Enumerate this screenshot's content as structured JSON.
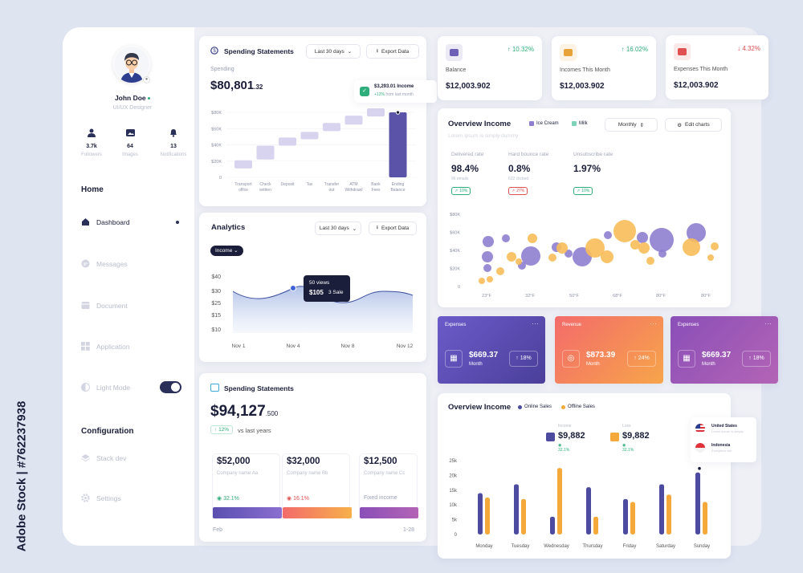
{
  "profile": {
    "name": "John Doe",
    "role": "UI/UX Designer",
    "stats": [
      {
        "value": "3.7k",
        "label": "Followers"
      },
      {
        "value": "64",
        "label": "Images"
      },
      {
        "value": "13",
        "label": "Notifications"
      }
    ]
  },
  "sidebar": {
    "home_heading": "Home",
    "items": [
      {
        "label": "Dashboard"
      },
      {
        "label": "Messages"
      },
      {
        "label": "Document"
      },
      {
        "label": "Application"
      },
      {
        "label": "Light Mode"
      }
    ],
    "config_heading": "Configuration",
    "config_items": [
      {
        "label": "Stack dev"
      },
      {
        "label": "Settings"
      }
    ]
  },
  "spending_top": {
    "title": "Spending Statements",
    "range": "Last 30 days",
    "export": "Export Data",
    "label": "Spending",
    "amount": "$80,801",
    "cents": ".32",
    "tooltip_amount": "$3,293.01 Income",
    "tooltip_change": "+12%",
    "tooltip_note": "from last month",
    "chart_data": {
      "type": "waterfall",
      "categories": [
        "Transport office",
        "Check written",
        "Deposit",
        "Tax",
        "Transfer out",
        "ATM Withdrawl",
        "Bank Fees",
        "Ending Balance"
      ],
      "y_ticks": [
        "$80K",
        "$60K",
        "$40K",
        "$20K",
        "0"
      ],
      "ranges": [
        [
          11,
          21
        ],
        [
          22,
          39
        ],
        [
          39,
          49
        ],
        [
          47,
          56
        ],
        [
          57,
          67
        ],
        [
          65,
          76
        ],
        [
          75,
          85
        ],
        [
          0,
          80
        ]
      ],
      "ylim": [
        0,
        85
      ]
    }
  },
  "stats_cards": [
    {
      "label": "Balance",
      "value": "$12,003.902",
      "change": "10.32%",
      "direction": "up",
      "color": "#6c5fb5"
    },
    {
      "label": "Incomes This Month",
      "value": "$12,003.902",
      "change": "16.02%",
      "direction": "up",
      "color": "#e8a23a"
    },
    {
      "label": "Expenses This Month",
      "value": "$12,003.902",
      "change": "4.32%",
      "direction": "down",
      "color": "#e05050"
    }
  ],
  "overview_income_bubble": {
    "title": "Overview Income",
    "subtitle": "Lorem ipsum is simply dummy",
    "legend": [
      "Ice Cream",
      "Milk"
    ],
    "period": "Monthly",
    "edit": "Edit charts",
    "metrics": [
      {
        "label": "Delivered rate",
        "value": "98.4%",
        "sub": "96 emails",
        "badge": "10%",
        "badge_color": "#2eae7a"
      },
      {
        "label": "Hard bounce rate",
        "value": "0.8%",
        "sub": "632 clicked",
        "badge": "27%",
        "badge_color": "#e05050"
      },
      {
        "label": "Unsubscribe rate",
        "value": "1.97%",
        "sub": "",
        "badge": "10%",
        "badge_color": "#2eae7a"
      }
    ],
    "chart_data": {
      "type": "scatter",
      "y_ticks": [
        "$80K",
        "$60K",
        "$40K",
        "$20K",
        "0"
      ],
      "x_ticks": [
        "23°F",
        "32°F",
        "50°F",
        "68°F",
        "80°F",
        "80°F"
      ]
    }
  },
  "gradient_cards": [
    {
      "title": "Expenses",
      "amount": "$669.37",
      "period": "Month",
      "change": "18%"
    },
    {
      "title": "Revenue",
      "amount": "$873.39",
      "period": "Month",
      "change": "24%"
    },
    {
      "title": "Expenses",
      "amount": "$669.37",
      "period": "Month",
      "change": "18%"
    }
  ],
  "analytics": {
    "title": "Analytics",
    "range": "Last 30 days",
    "export": "Export Data",
    "filter": "Income",
    "tooltip_views": "50 views",
    "tooltip_value": "$105",
    "tooltip_sale": "3 Sale",
    "chart_data": {
      "type": "area",
      "y_ticks": [
        "$40",
        "$30",
        "$25",
        "$15",
        "$10"
      ],
      "x_ticks": [
        "Nov 1",
        "Nov 4",
        "Nov 8",
        "Nov 12"
      ]
    }
  },
  "spending_bottom": {
    "title": "Spending Statements",
    "amount": "$94,127",
    "cents": ".500",
    "change": "12%",
    "vs": "vs last years",
    "companies": [
      {
        "value": "$52,000",
        "name": "Company name Aa",
        "change": "32.1%",
        "dir": "up"
      },
      {
        "value": "$32,000",
        "name": "Company name Bb",
        "change": "16.1%",
        "dir": "down"
      },
      {
        "value": "$12,500",
        "name": "Company name Cc",
        "change": "Fixed income",
        "dir": "none"
      }
    ],
    "from": "Feb",
    "to": "1-28"
  },
  "overview_income_bar": {
    "title": "Overview Income",
    "legend": [
      "Online Sales",
      "Offline Sales"
    ],
    "income_label": "Income",
    "income_value": "$9,882",
    "income_change": "32.1%",
    "loss_label": "Loss",
    "loss_value": "$9,882",
    "loss_change": "32.1%",
    "countries": [
      {
        "name": "United States",
        "sub": "Lorem ipsum is simply"
      },
      {
        "name": "Indonesia",
        "sub": "Excepteur sint"
      }
    ],
    "chart_data": {
      "type": "bar",
      "categories": [
        "Monday",
        "Tuesday",
        "Wednesday",
        "Thursday",
        "Friday",
        "Saturday",
        "Sunday"
      ],
      "y_ticks": [
        "25k",
        "20k",
        "15k",
        "10k",
        "5k",
        "0"
      ],
      "series": [
        {
          "name": "Online Sales",
          "values": [
            14,
            17,
            6,
            16,
            12,
            17,
            21
          ]
        },
        {
          "name": "Offline Sales",
          "values": [
            12.5,
            12,
            22.5,
            6,
            11,
            13.5,
            11
          ]
        }
      ],
      "ylim": [
        0,
        25
      ]
    }
  },
  "watermark": "Adobe Stock | #762237938"
}
